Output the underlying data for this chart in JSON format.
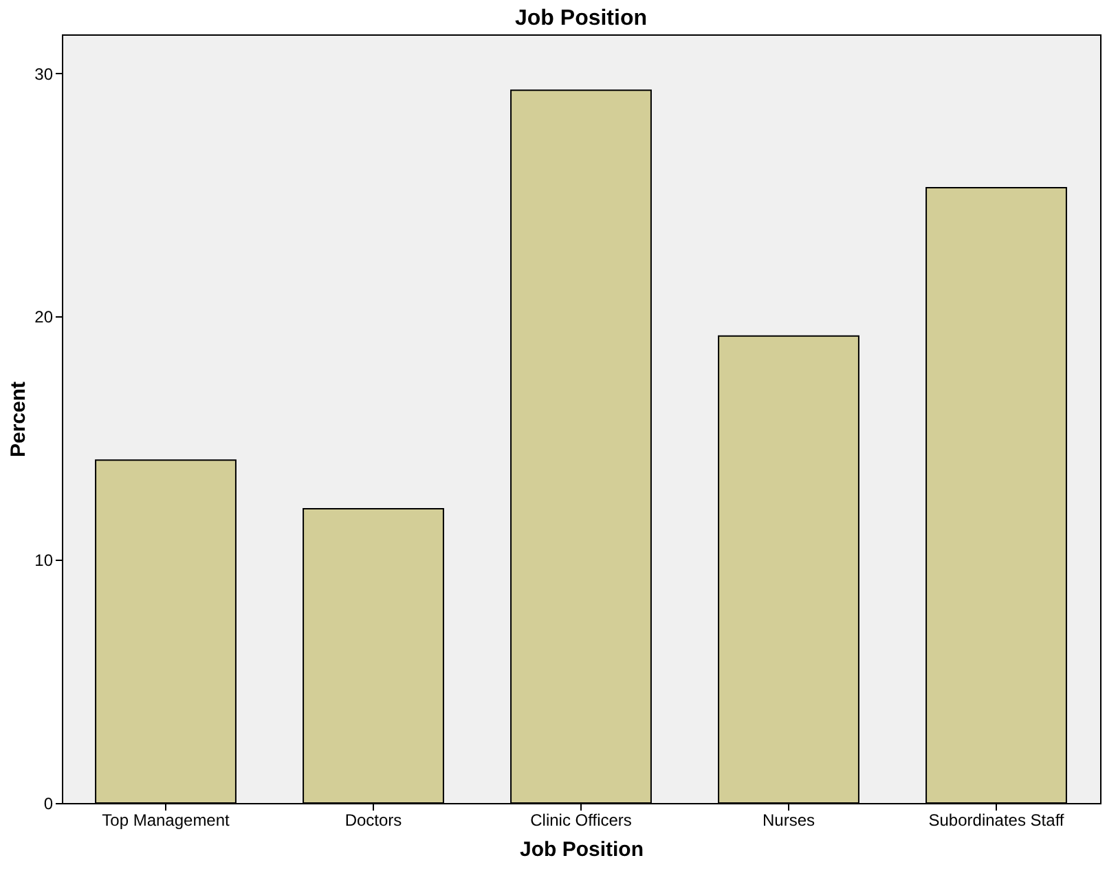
{
  "chart_data": {
    "type": "bar",
    "title": "Job Position",
    "xlabel": "Job Position",
    "ylabel": "Percent",
    "categories": [
      "Top Management",
      "Doctors",
      "Clinic Officers",
      "Nurses",
      "Subordinates Staff"
    ],
    "values": [
      14.1,
      12.1,
      29.3,
      19.2,
      25.3
    ],
    "color": "#d3ce97",
    "ylim": [
      0,
      31.6
    ],
    "yticks": [
      0,
      10,
      20,
      30
    ],
    "grid": false
  }
}
